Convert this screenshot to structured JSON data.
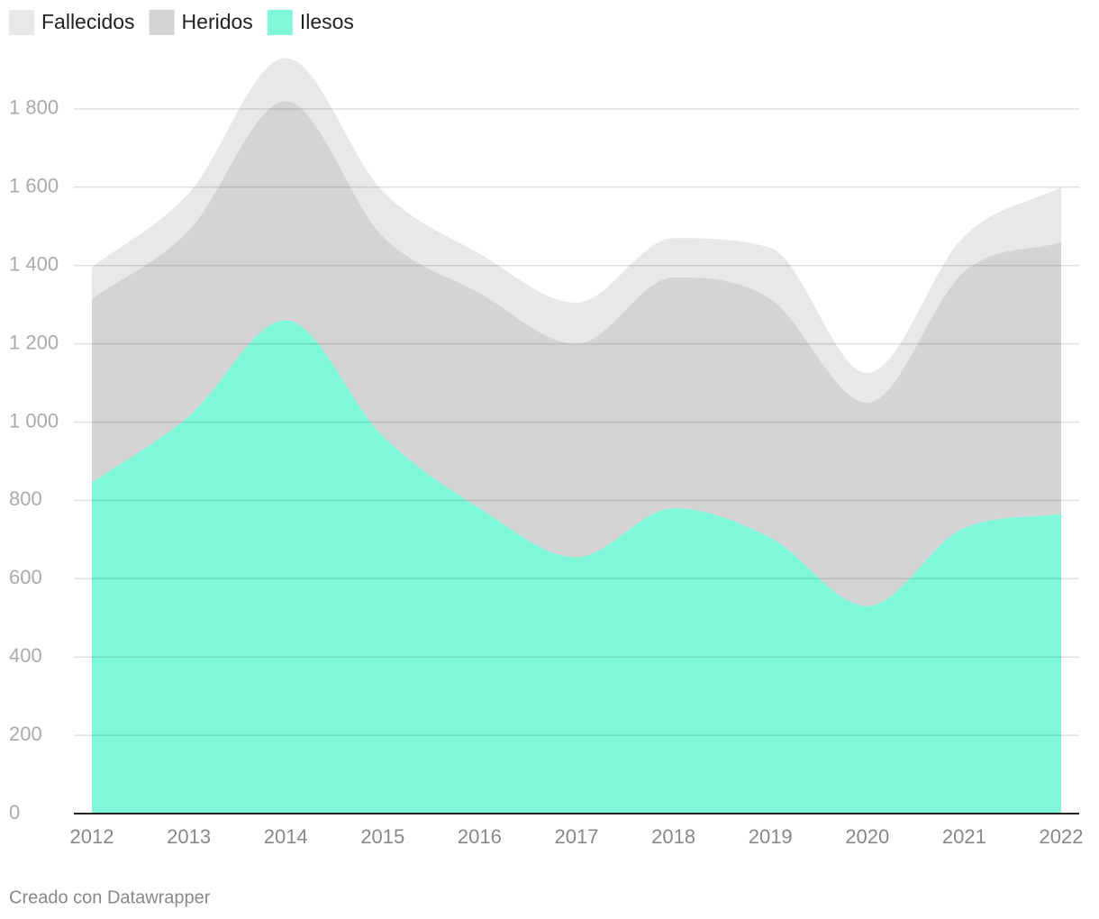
{
  "chart_data": {
    "type": "stacked-area",
    "x": [
      2012,
      2013,
      2014,
      2015,
      2016,
      2017,
      2018,
      2019,
      2020,
      2021,
      2022
    ],
    "series": [
      {
        "name": "Fallecidos",
        "color": "#e8e8e8",
        "values": [
          80,
          95,
          110,
          115,
          100,
          105,
          100,
          130,
          75,
          90,
          140
        ]
      },
      {
        "name": "Heridos",
        "color": "#d4d4d4",
        "values": [
          470,
          475,
          560,
          510,
          550,
          545,
          590,
          610,
          520,
          655,
          695
        ]
      },
      {
        "name": "Ilesos",
        "color": "#7ff8da",
        "values": [
          845,
          1015,
          1260,
          965,
          780,
          655,
          780,
          705,
          530,
          730,
          765
        ]
      }
    ],
    "ylim": [
      0,
      2000
    ],
    "yticks": [
      0,
      200,
      400,
      600,
      800,
      {
        "value": 1000,
        "label": "1 000"
      },
      {
        "value": 1200,
        "label": "1 200"
      },
      {
        "value": 1400,
        "label": "1 400"
      },
      {
        "value": 1600,
        "label": "1 600"
      },
      {
        "value": 1800,
        "label": "1 800"
      }
    ],
    "xlim": [
      2012,
      2022
    ],
    "grid": true,
    "footer": "Creado con Datawrapper"
  }
}
